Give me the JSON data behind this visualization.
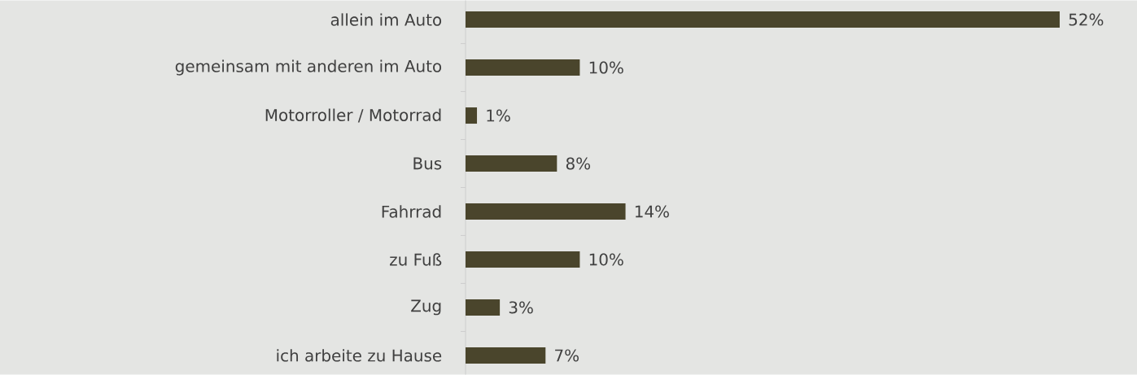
{
  "chart_data": {
    "type": "bar",
    "orientation": "horizontal",
    "categories": [
      "allein im Auto",
      "gemeinsam mit anderen im Auto",
      "Motorroller / Motorrad",
      "Bus",
      "Fahrrad",
      "zu Fuß",
      "Zug",
      "ich arbeite zu Hause"
    ],
    "values": [
      52,
      10,
      1,
      8,
      14,
      10,
      3,
      7
    ],
    "value_labels": [
      "52%",
      "10%",
      "1%",
      "8%",
      "14%",
      "10%",
      "3%",
      "7%"
    ],
    "color": "#4a452c"
  }
}
